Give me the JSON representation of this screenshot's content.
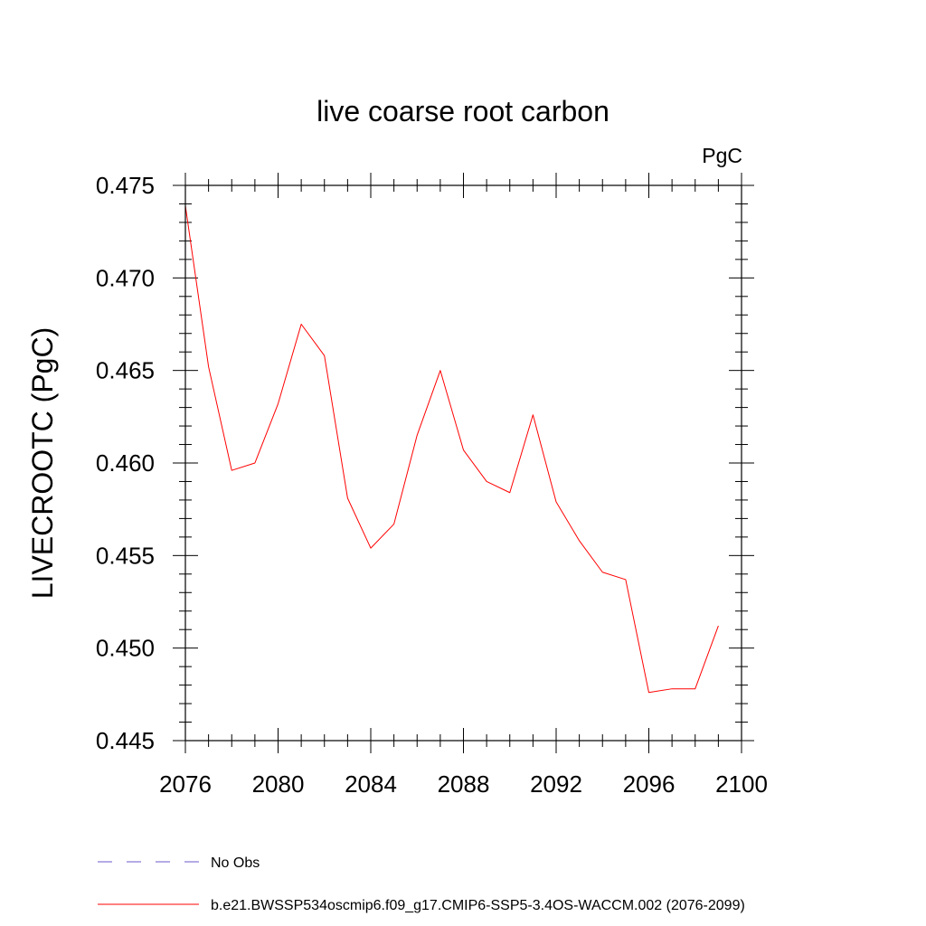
{
  "chart_data": {
    "type": "line",
    "title": "live coarse root carbon",
    "units_label": "PgC",
    "ylabel": "LIVECROOTC  (PgC)",
    "xlabel": "",
    "xlim": [
      2076,
      2100
    ],
    "ylim": [
      0.445,
      0.475
    ],
    "x_ticks": [
      2076,
      2080,
      2084,
      2088,
      2092,
      2096,
      2100
    ],
    "x_tick_labels": [
      "2076",
      "2080",
      "2084",
      "2088",
      "2092",
      "2096",
      "2100"
    ],
    "y_ticks": [
      0.445,
      0.45,
      0.455,
      0.46,
      0.465,
      0.47,
      0.475
    ],
    "y_tick_labels": [
      "0.445",
      "0.450",
      "0.455",
      "0.460",
      "0.465",
      "0.470",
      "0.475"
    ],
    "grid": false,
    "series": [
      {
        "name": "b.e21.BWSSP534oscmip6.f09_g17.CMIP6-SSP5-3.4OS-WACCM.002 (2076-2099)",
        "color": "#ff0000",
        "dash": "solid",
        "x": [
          2076,
          2077,
          2078,
          2079,
          2080,
          2081,
          2082,
          2083,
          2084,
          2085,
          2086,
          2087,
          2088,
          2089,
          2090,
          2091,
          2092,
          2093,
          2094,
          2095,
          2096,
          2097,
          2098,
          2099
        ],
        "values": [
          0.4739,
          0.4652,
          0.4596,
          0.46,
          0.4632,
          0.4675,
          0.4658,
          0.4581,
          0.4554,
          0.4567,
          0.4615,
          0.465,
          0.4607,
          0.459,
          0.4584,
          0.4626,
          0.4579,
          0.4558,
          0.4541,
          0.4537,
          0.4476,
          0.4478,
          0.4478,
          0.4512
        ]
      }
    ],
    "legend": {
      "placement": "bottom-left",
      "entries": [
        {
          "label": "No Obs",
          "color": "#6a5acd",
          "dash": "dashed"
        },
        {
          "label": "b.e21.BWSSP534oscmip6.f09_g17.CMIP6-SSP5-3.4OS-WACCM.002 (2076-2099)",
          "color": "#ff0000",
          "dash": "solid"
        }
      ]
    }
  }
}
